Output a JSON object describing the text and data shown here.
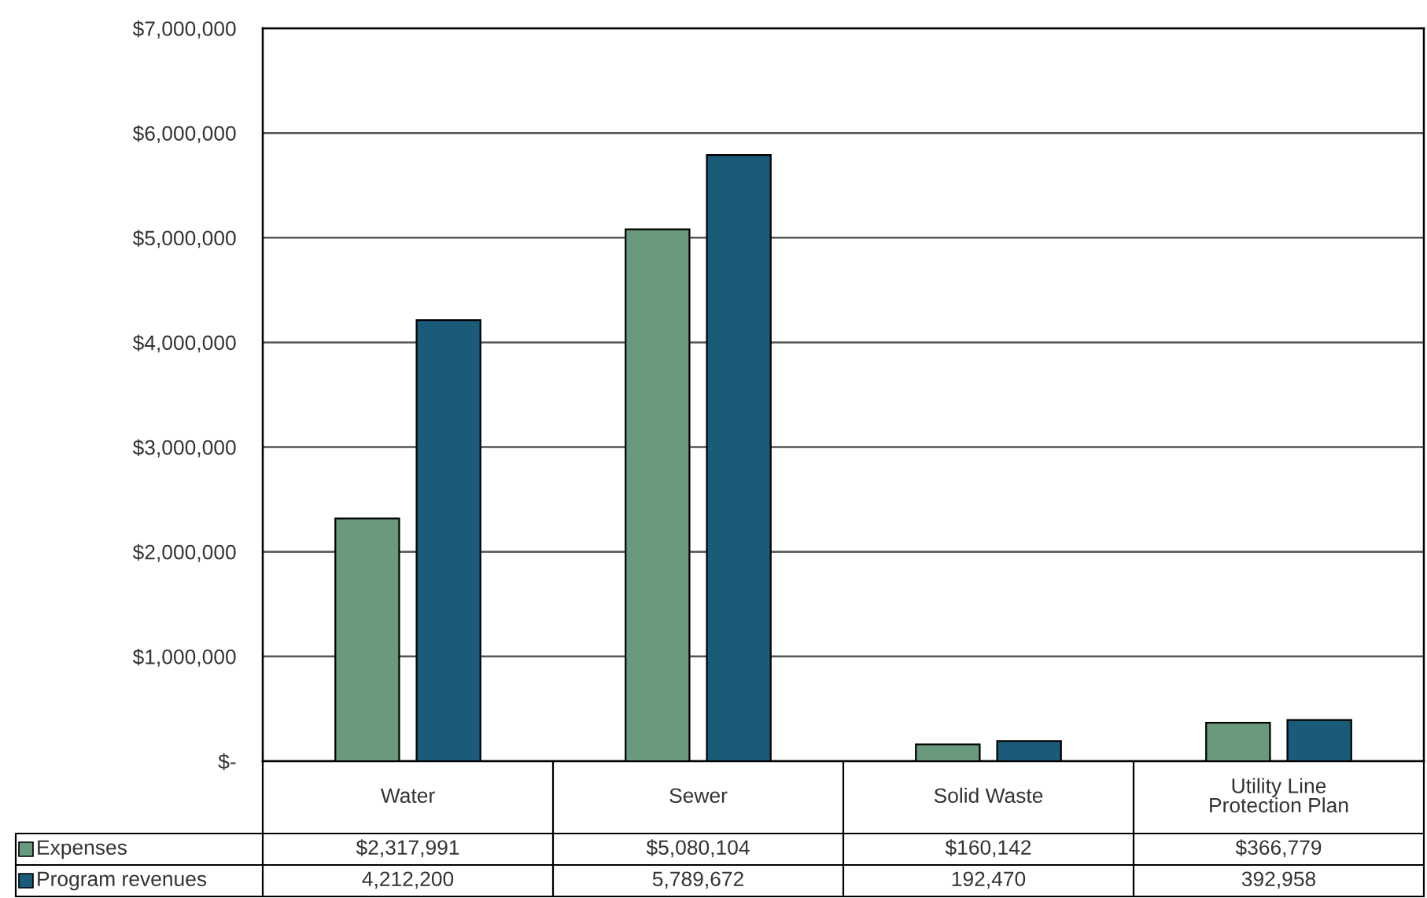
{
  "chart_data": {
    "type": "bar",
    "categories": [
      "Water",
      "Sewer",
      "Solid Waste",
      "Utility Line\nProtection Plan"
    ],
    "series": [
      {
        "name": "Expenses",
        "color": "#6a9a7e",
        "values": [
          2317991,
          5080104,
          160142,
          366779
        ],
        "value_labels": [
          "$2,317,991",
          "$5,080,104",
          "$160,142",
          "$366,779"
        ]
      },
      {
        "name": "Program revenues",
        "color": "#1a5b7a",
        "values": [
          4212200,
          5789672,
          192470,
          392958
        ],
        "value_labels": [
          "4,212,200",
          "5,789,672",
          "192,470",
          "392,958"
        ]
      }
    ],
    "ylim": [
      0,
      7000000
    ],
    "yticks": [
      {
        "value": 0,
        "label": "$-"
      },
      {
        "value": 1000000,
        "label": "$1,000,000"
      },
      {
        "value": 2000000,
        "label": "$2,000,000"
      },
      {
        "value": 3000000,
        "label": "$3,000,000"
      },
      {
        "value": 4000000,
        "label": "$4,000,000"
      },
      {
        "value": 5000000,
        "label": "$5,000,000"
      },
      {
        "value": 6000000,
        "label": "$6,000,000"
      },
      {
        "value": 7000000,
        "label": "$7,000,000"
      }
    ],
    "grid": "y",
    "legend": "bottom"
  }
}
